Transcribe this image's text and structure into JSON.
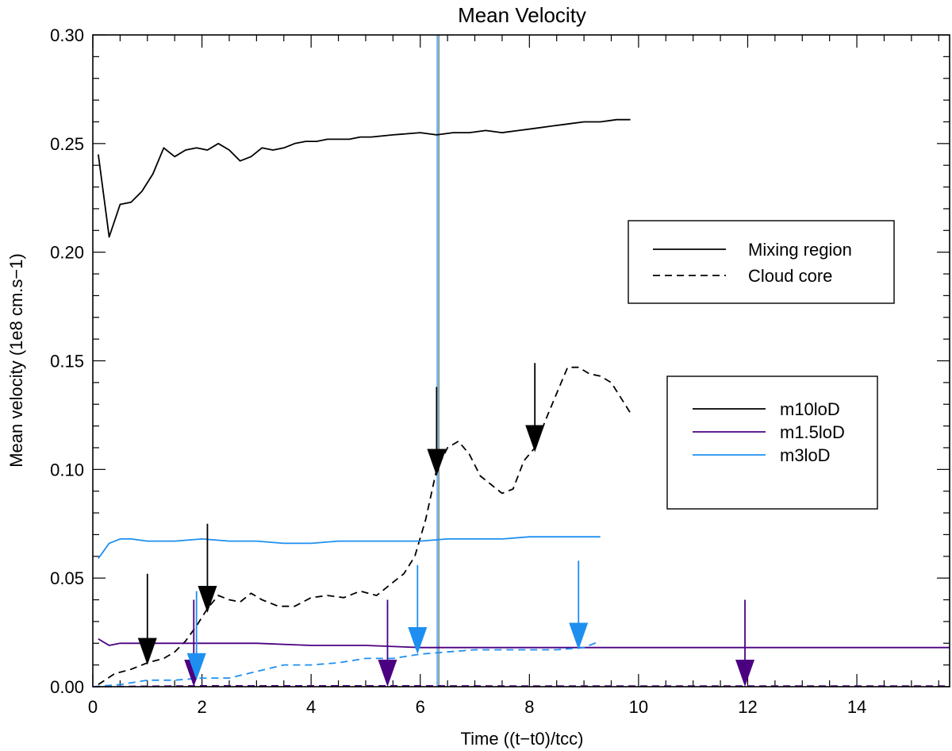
{
  "chart_data": {
    "type": "line",
    "title": "Mean Velocity",
    "xlabel": "Time ((t−t0)/tcc)",
    "ylabel": "Mean velocity (1e8 cm.s−1)",
    "xlim": [
      0,
      15.7
    ],
    "ylim": [
      0,
      0.3
    ],
    "xticks": [
      0,
      2,
      4,
      6,
      8,
      10,
      12,
      14
    ],
    "xtick_labels": [
      "0",
      "2",
      "4",
      "6",
      "8",
      "10",
      "12",
      "14"
    ],
    "yticks": [
      0,
      0.05,
      0.1,
      0.15,
      0.2,
      0.25,
      0.3
    ],
    "ytick_labels": [
      "0.00",
      "0.05",
      "0.10",
      "0.15",
      "0.20",
      "0.25",
      "0.30"
    ],
    "grid": false,
    "colors": {
      "m10loD": "#000000",
      "m1.5loD": "#4b0082",
      "m3loD": "#1e8ff0",
      "vline_a": "#1e8ff0",
      "vline_b": "#3c6464"
    },
    "legend_style": {
      "position": "upper-right",
      "entries": [
        {
          "label": "Mixing region",
          "dash": "solid"
        },
        {
          "label": "Cloud core",
          "dash": "dashed"
        }
      ]
    },
    "legend_models": {
      "position": "right",
      "entries": [
        {
          "label": "m10loD",
          "color": "#000000"
        },
        {
          "label": "m1.5loD",
          "color": "#4b0082"
        },
        {
          "label": "m3loD",
          "color": "#1e8ff0"
        }
      ]
    },
    "series": [
      {
        "name": "m10loD mixing region",
        "color": "#000000",
        "dash": "solid",
        "x": [
          0.1,
          0.3,
          0.5,
          0.7,
          0.9,
          1.1,
          1.3,
          1.5,
          1.7,
          1.9,
          2.1,
          2.3,
          2.5,
          2.7,
          2.9,
          3.1,
          3.3,
          3.5,
          3.7,
          3.9,
          4.1,
          4.3,
          4.5,
          4.7,
          4.9,
          5.1,
          5.5,
          6.0,
          6.3,
          6.6,
          6.9,
          7.2,
          7.5,
          7.8,
          8.1,
          8.4,
          8.7,
          9.0,
          9.3,
          9.6,
          9.85
        ],
        "y": [
          0.245,
          0.207,
          0.222,
          0.223,
          0.228,
          0.236,
          0.248,
          0.244,
          0.247,
          0.248,
          0.247,
          0.25,
          0.247,
          0.242,
          0.244,
          0.248,
          0.247,
          0.248,
          0.25,
          0.251,
          0.251,
          0.252,
          0.252,
          0.252,
          0.253,
          0.253,
          0.254,
          0.255,
          0.254,
          0.255,
          0.255,
          0.256,
          0.255,
          0.256,
          0.257,
          0.258,
          0.259,
          0.26,
          0.26,
          0.261,
          0.261
        ]
      },
      {
        "name": "m10loD cloud core",
        "color": "#000000",
        "dash": "dashed",
        "x": [
          0.1,
          0.4,
          0.7,
          1.0,
          1.3,
          1.5,
          1.7,
          1.9,
          2.1,
          2.3,
          2.5,
          2.7,
          2.9,
          3.1,
          3.4,
          3.7,
          4.0,
          4.3,
          4.6,
          4.9,
          5.2,
          5.5,
          5.7,
          5.9,
          6.1,
          6.3,
          6.5,
          6.7,
          6.9,
          7.1,
          7.3,
          7.5,
          7.7,
          7.9,
          8.1,
          8.3,
          8.5,
          8.7,
          8.9,
          9.1,
          9.3,
          9.5,
          9.7,
          9.85
        ],
        "y": [
          0.001,
          0.006,
          0.008,
          0.011,
          0.013,
          0.016,
          0.021,
          0.028,
          0.036,
          0.042,
          0.04,
          0.039,
          0.043,
          0.04,
          0.037,
          0.037,
          0.041,
          0.042,
          0.041,
          0.044,
          0.042,
          0.048,
          0.052,
          0.06,
          0.077,
          0.1,
          0.11,
          0.113,
          0.107,
          0.097,
          0.093,
          0.089,
          0.091,
          0.104,
          0.11,
          0.123,
          0.135,
          0.147,
          0.147,
          0.144,
          0.143,
          0.14,
          0.132,
          0.126
        ]
      },
      {
        "name": "m1.5loD mixing region",
        "color": "#4b0082",
        "dash": "solid",
        "x": [
          0.1,
          0.3,
          0.5,
          1.0,
          1.5,
          2.0,
          2.5,
          3.0,
          4.0,
          5.0,
          6.0,
          7.0,
          8.0,
          9.0,
          10.0,
          12.0,
          14.0,
          15.7
        ],
        "y": [
          0.022,
          0.019,
          0.02,
          0.02,
          0.02,
          0.02,
          0.02,
          0.02,
          0.019,
          0.019,
          0.018,
          0.018,
          0.018,
          0.018,
          0.018,
          0.018,
          0.018,
          0.018
        ]
      },
      {
        "name": "m1.5loD cloud core",
        "color": "#4b0082",
        "dash": "dashed",
        "x": [
          0.0,
          2.0,
          4.0,
          6.0,
          8.0,
          10.0,
          12.0,
          14.0,
          15.7
        ],
        "y": [
          0.0,
          0.0004,
          0.0004,
          0.0004,
          0.0003,
          0.0003,
          0.0003,
          0.0003,
          0.0003
        ]
      },
      {
        "name": "m3loD mixing region",
        "color": "#1e8ff0",
        "dash": "solid",
        "x": [
          0.1,
          0.3,
          0.5,
          0.7,
          1.0,
          1.5,
          2.0,
          2.5,
          3.0,
          3.5,
          4.0,
          4.5,
          5.0,
          5.5,
          6.0,
          6.5,
          7.0,
          7.5,
          8.0,
          8.5,
          9.0,
          9.3
        ],
        "y": [
          0.059,
          0.066,
          0.068,
          0.068,
          0.067,
          0.067,
          0.068,
          0.067,
          0.067,
          0.066,
          0.066,
          0.067,
          0.067,
          0.067,
          0.067,
          0.068,
          0.068,
          0.068,
          0.069,
          0.069,
          0.069,
          0.069
        ]
      },
      {
        "name": "m3loD cloud core",
        "color": "#1e8ff0",
        "dash": "dashed",
        "x": [
          0.0,
          0.5,
          1.0,
          1.5,
          2.0,
          2.5,
          3.0,
          3.5,
          4.0,
          4.5,
          5.0,
          5.5,
          6.0,
          6.5,
          7.0,
          7.5,
          8.0,
          8.5,
          9.0,
          9.3
        ],
        "y": [
          0.0,
          0.001,
          0.003,
          0.003,
          0.004,
          0.004,
          0.007,
          0.01,
          0.01,
          0.011,
          0.013,
          0.013,
          0.015,
          0.016,
          0.017,
          0.017,
          0.017,
          0.017,
          0.018,
          0.021
        ]
      }
    ],
    "vlines": [
      {
        "x": 6.31,
        "color": "#1e8ff0"
      },
      {
        "x": 6.34,
        "color": "#3c6464"
      }
    ],
    "arrows": [
      {
        "x": 1.0,
        "y_top": 0.052,
        "y_tip": 0.01,
        "color": "#000000"
      },
      {
        "x": 2.1,
        "y_top": 0.075,
        "y_tip": 0.034,
        "color": "#000000"
      },
      {
        "x": 6.3,
        "y_top": 0.138,
        "y_tip": 0.097,
        "color": "#000000"
      },
      {
        "x": 8.1,
        "y_top": 0.149,
        "y_tip": 0.108,
        "color": "#000000"
      },
      {
        "x": 1.85,
        "y_top": 0.04,
        "y_tip": 0.0,
        "color": "#4b0082"
      },
      {
        "x": 5.4,
        "y_top": 0.04,
        "y_tip": 0.0,
        "color": "#4b0082"
      },
      {
        "x": 11.95,
        "y_top": 0.04,
        "y_tip": 0.0,
        "color": "#4b0082"
      },
      {
        "x": 1.9,
        "y_top": 0.044,
        "y_tip": 0.003,
        "color": "#1e8ff0"
      },
      {
        "x": 5.95,
        "y_top": 0.056,
        "y_tip": 0.015,
        "color": "#1e8ff0"
      },
      {
        "x": 8.9,
        "y_top": 0.058,
        "y_tip": 0.017,
        "color": "#1e8ff0"
      }
    ]
  }
}
